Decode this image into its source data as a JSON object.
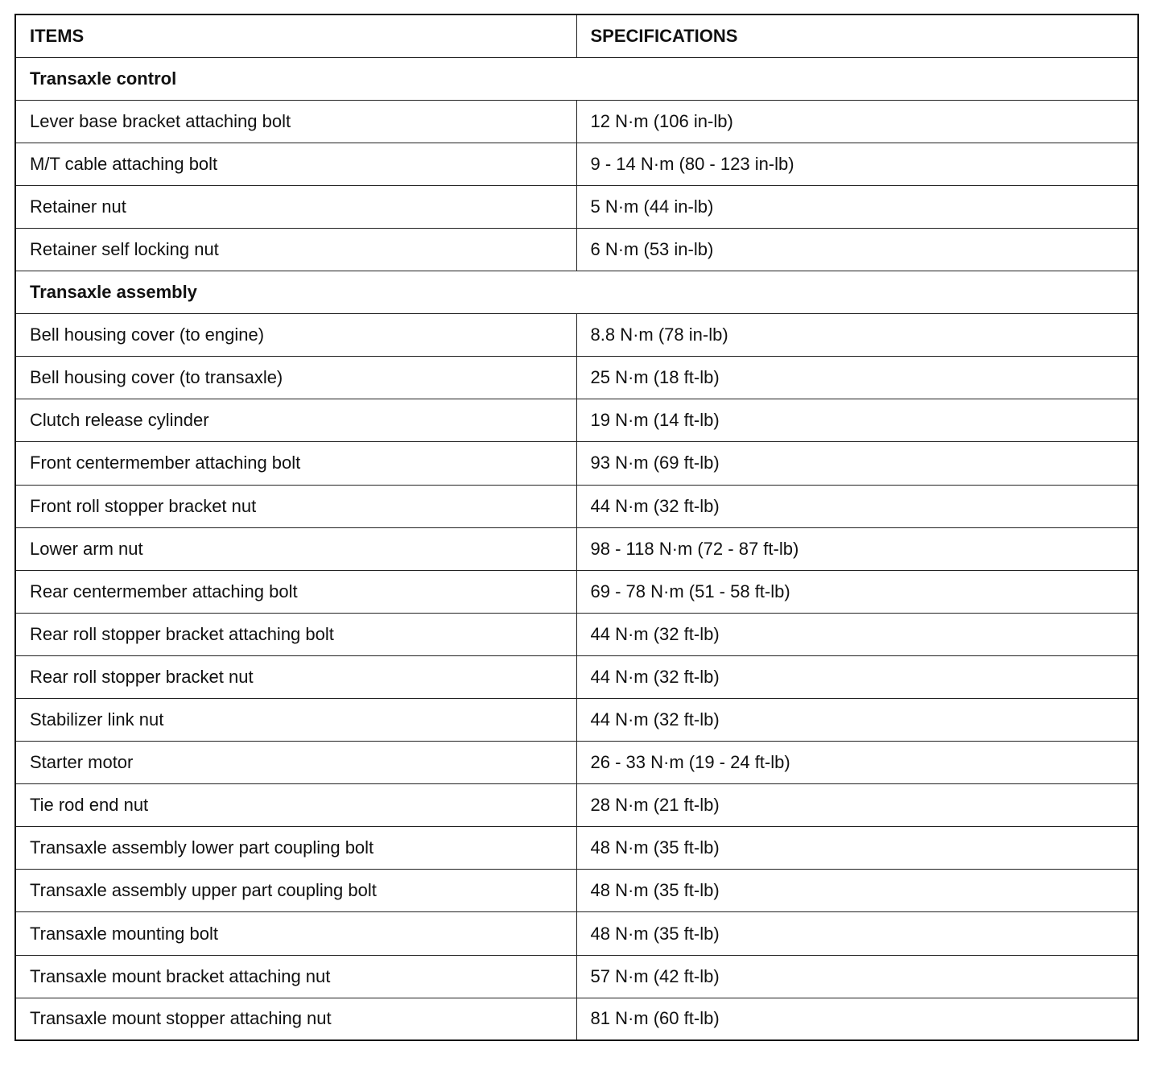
{
  "table": {
    "headers": [
      "ITEMS",
      "SPECIFICATIONS"
    ],
    "sections": [
      {
        "title": "Transaxle control",
        "rows": [
          [
            "Lever base bracket attaching bolt",
            "12 N·m (106 in-lb)"
          ],
          [
            "M/T cable attaching bolt",
            "9 - 14 N·m (80 - 123 in-lb)"
          ],
          [
            "Retainer nut",
            "5 N·m (44 in-lb)"
          ],
          [
            "Retainer self locking nut",
            "6 N·m (53 in-lb)"
          ]
        ]
      },
      {
        "title": "Transaxle assembly",
        "rows": [
          [
            "Bell housing cover (to engine)",
            "8.8 N·m (78 in-lb)"
          ],
          [
            "Bell housing cover (to transaxle)",
            "25 N·m (18 ft-lb)"
          ],
          [
            "Clutch release cylinder",
            "19 N·m (14 ft-lb)"
          ],
          [
            "Front centermember attaching bolt",
            "93 N·m (69 ft-lb)"
          ],
          [
            "Front roll stopper bracket nut",
            "44 N·m (32 ft-lb)"
          ],
          [
            "Lower arm nut",
            "98 - 118 N·m (72 - 87 ft-lb)"
          ],
          [
            "Rear centermember attaching bolt",
            "69 - 78 N·m (51 - 58 ft-lb)"
          ],
          [
            "Rear roll stopper bracket attaching bolt",
            "44 N·m (32 ft-lb)"
          ],
          [
            "Rear roll stopper bracket nut",
            "44 N·m (32 ft-lb)"
          ],
          [
            "Stabilizer link nut",
            "44 N·m (32 ft-lb)"
          ],
          [
            "Starter motor",
            "26 - 33 N·m (19 - 24 ft-lb)"
          ],
          [
            "Tie rod end nut",
            "28 N·m (21 ft-lb)"
          ],
          [
            "Transaxle assembly lower part coupling bolt",
            "48 N·m (35 ft-lb)"
          ],
          [
            "Transaxle assembly upper part coupling bolt",
            "48 N·m (35 ft-lb)"
          ],
          [
            "Transaxle mounting bolt",
            "48 N·m (35 ft-lb)"
          ],
          [
            "Transaxle mount bracket attaching nut",
            "57 N·m (42 ft-lb)"
          ],
          [
            "Transaxle mount stopper attaching nut",
            "81 N·m (60 ft-lb)"
          ]
        ]
      }
    ]
  }
}
